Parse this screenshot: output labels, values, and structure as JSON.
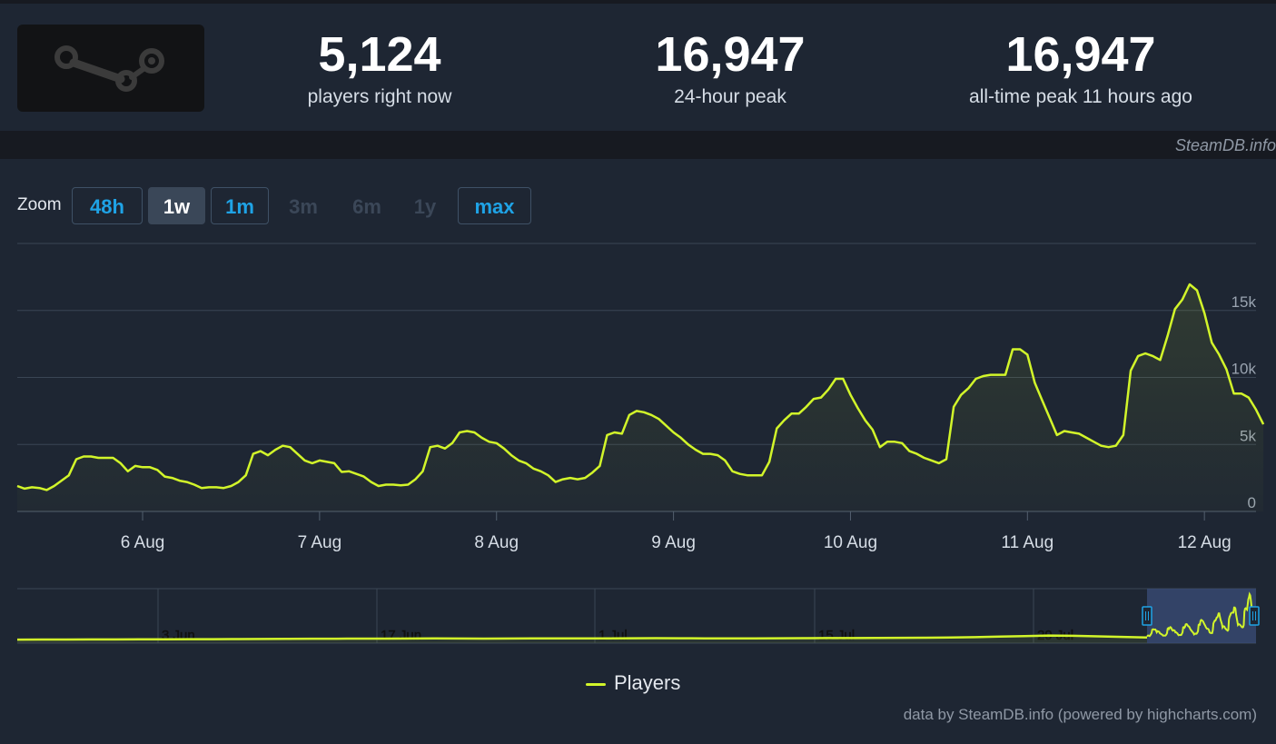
{
  "header": {
    "logo_icon": "steam-logo-icon",
    "stats": [
      {
        "value": "5,124",
        "label": "players right now"
      },
      {
        "value": "16,947",
        "label": "24-hour peak"
      },
      {
        "value": "16,947",
        "label": "all-time peak 11 hours ago"
      }
    ],
    "credit": "SteamDB.info"
  },
  "zoom": {
    "label": "Zoom",
    "buttons": [
      {
        "label": "48h",
        "state": "enabled"
      },
      {
        "label": "1w",
        "state": "active"
      },
      {
        "label": "1m",
        "state": "enabled"
      },
      {
        "label": "3m",
        "state": "disabled"
      },
      {
        "label": "6m",
        "state": "disabled"
      },
      {
        "label": "1y",
        "state": "disabled"
      },
      {
        "label": "max",
        "state": "enabled"
      }
    ]
  },
  "chart_data": {
    "type": "line",
    "series": [
      {
        "name": "Players",
        "color": "#d2f52a",
        "x_hours": [
          0,
          1,
          2,
          3,
          4,
          5,
          6,
          7,
          8,
          9,
          10,
          11,
          12,
          13,
          14,
          15,
          16,
          17,
          18,
          19,
          20,
          21,
          22,
          23,
          24,
          25,
          26,
          27,
          28,
          29,
          30,
          31,
          32,
          33,
          34,
          35,
          36,
          37,
          38,
          39,
          40,
          41,
          42,
          43,
          44,
          45,
          46,
          47,
          48,
          49,
          50,
          51,
          52,
          53,
          54,
          55,
          56,
          57,
          58,
          59,
          60,
          61,
          62,
          63,
          64,
          65,
          66,
          67,
          68,
          69,
          70,
          71,
          72,
          73,
          74,
          75,
          76,
          77,
          78,
          79,
          80,
          81,
          82,
          83,
          84,
          85,
          86,
          87,
          88,
          89,
          90,
          91,
          92,
          93,
          94,
          95,
          96,
          97,
          98,
          99,
          100,
          101,
          102,
          103,
          104,
          105,
          106,
          107,
          108,
          109,
          110,
          111,
          112,
          113,
          114,
          115,
          116,
          117,
          118,
          119,
          120,
          121,
          122,
          123,
          124,
          125,
          126,
          127,
          128,
          129,
          130,
          131,
          132,
          133,
          134,
          135,
          136,
          137,
          138,
          139,
          140,
          141,
          142,
          143,
          144,
          145,
          146,
          147,
          148,
          149,
          150,
          151,
          152,
          153,
          154,
          155,
          156,
          157,
          158,
          159,
          160,
          161,
          162,
          163,
          164,
          165,
          166,
          167,
          168,
          169
        ],
        "values": [
          1900,
          1700,
          1800,
          1750,
          1600,
          1900,
          2300,
          2700,
          3900,
          4100,
          4100,
          4000,
          4000,
          4000,
          3600,
          3000,
          3400,
          3300,
          3300,
          3100,
          2600,
          2500,
          2300,
          2200,
          2000,
          1750,
          1800,
          1800,
          1750,
          1900,
          2200,
          2700,
          4300,
          4500,
          4200,
          4600,
          4900,
          4800,
          4300,
          3800,
          3600,
          3800,
          3700,
          3600,
          2950,
          3000,
          2800,
          2600,
          2200,
          1900,
          2000,
          2000,
          1950,
          2000,
          2400,
          3000,
          4800,
          4900,
          4700,
          5100,
          5900,
          6000,
          5900,
          5500,
          5200,
          5100,
          4700,
          4200,
          3800,
          3600,
          3200,
          3000,
          2700,
          2200,
          2400,
          2500,
          2400,
          2500,
          2900,
          3400,
          5700,
          5900,
          5800,
          7200,
          7500,
          7400,
          7200,
          6900,
          6400,
          5900,
          5500,
          5000,
          4600,
          4300,
          4300,
          4200,
          3800,
          3000,
          2800,
          2700,
          2700,
          2700,
          3700,
          6200,
          6800,
          7300,
          7300,
          7800,
          8400,
          8500,
          9100,
          9900,
          9900,
          8700,
          7700,
          6800,
          6100,
          4800,
          5200,
          5200,
          5100,
          4500,
          4300,
          4000,
          3800,
          3600,
          3900,
          7800,
          8700,
          9200,
          9900,
          10100,
          10200,
          10200,
          10200,
          12100,
          12100,
          11700,
          9600,
          8300,
          7000,
          5700,
          6000,
          5900,
          5800,
          5500,
          5200,
          4900,
          4800,
          4900,
          5700,
          10500,
          11600,
          11800,
          11600,
          11300,
          13100,
          15100,
          15800,
          16947,
          16500,
          14800,
          12600,
          11700,
          10600,
          8800,
          8800,
          8500,
          7600,
          6500
        ]
      }
    ],
    "x_tick_labels": [
      "6 Aug",
      "7 Aug",
      "8 Aug",
      "9 Aug",
      "10 Aug",
      "11 Aug",
      "12 Aug"
    ],
    "x_tick_hours": [
      17,
      41,
      65,
      89,
      113,
      137,
      161
    ],
    "y_ticks": [
      0,
      5000,
      10000,
      15000
    ],
    "y_tick_labels": [
      "0",
      "5k",
      "10k",
      "15k"
    ],
    "ylim": [
      0,
      20000
    ],
    "xlim": [
      0,
      168
    ],
    "grid": true,
    "legend": "bottom-center",
    "navigator": {
      "tick_labels": [
        "3 Jun",
        "17 Jun",
        "1 Jul",
        "15 Jul",
        "29 Jul"
      ],
      "values": [
        300,
        320,
        340,
        360,
        380,
        400,
        420,
        450,
        480,
        500,
        550,
        600,
        620,
        640,
        660,
        680,
        700,
        720,
        700,
        680,
        700,
        720,
        740,
        760,
        780,
        800,
        820,
        800,
        780,
        760,
        780,
        800,
        820,
        850,
        880,
        900,
        950,
        1000,
        1100,
        1200,
        1400,
        1600,
        1800,
        1700,
        1500,
        1300,
        1100
      ]
    }
  },
  "legend_label": "Players",
  "credit_bottom": "data by SteamDB.info (powered by highcharts.com)"
}
